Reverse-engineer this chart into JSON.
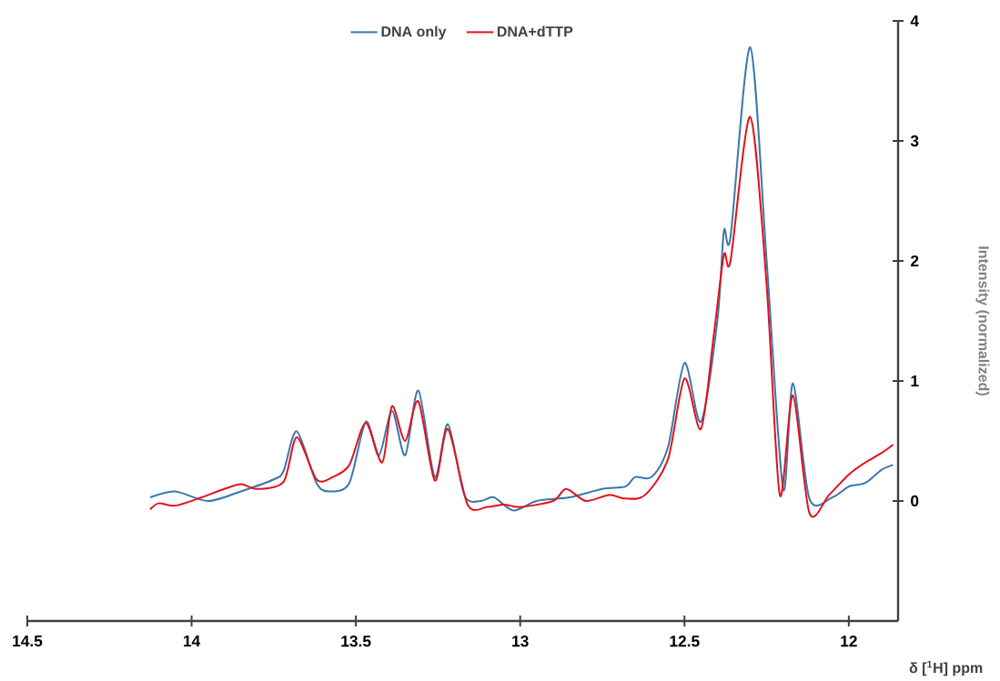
{
  "chart_data": {
    "type": "line",
    "xlabel": "δ [$^{1}$H] ppm",
    "ylabel": "Intensity (normalized)",
    "xlim": [
      14.5,
      11.85
    ],
    "xticks": [
      14.5,
      14,
      13.5,
      13,
      12.5,
      12
    ],
    "ylim": [
      -1,
      4
    ],
    "yticks": [
      0,
      1,
      2,
      3,
      4
    ],
    "legend": "top",
    "series": [
      {
        "name": "DNA only",
        "color": "#3a77ab",
        "x": [
          14.126,
          14.05,
          13.95,
          13.85,
          13.75,
          13.72,
          13.68,
          13.62,
          13.58,
          13.52,
          13.47,
          13.43,
          13.39,
          13.35,
          13.31,
          13.26,
          13.22,
          13.17,
          13.12,
          13.08,
          13.02,
          12.95,
          12.85,
          12.75,
          12.68,
          12.65,
          12.6,
          12.55,
          12.5,
          12.45,
          12.4,
          12.38,
          12.36,
          12.3,
          12.25,
          12.2,
          12.17,
          12.12,
          12.05,
          12.0,
          11.95,
          11.9,
          11.865
        ],
        "values": [
          0.03,
          0.08,
          0.0,
          0.08,
          0.18,
          0.25,
          0.58,
          0.15,
          0.08,
          0.15,
          0.66,
          0.38,
          0.75,
          0.38,
          0.92,
          0.2,
          0.64,
          0.05,
          0.0,
          0.03,
          -0.08,
          0.0,
          0.03,
          0.1,
          0.12,
          0.2,
          0.2,
          0.45,
          1.15,
          0.66,
          1.5,
          2.25,
          2.2,
          3.78,
          2.0,
          0.1,
          0.98,
          0.02,
          0.03,
          0.12,
          0.15,
          0.26,
          0.3
        ]
      },
      {
        "name": "DNA+dTTP",
        "color": "#e3101b",
        "x": [
          14.126,
          14.1,
          14.05,
          13.98,
          13.9,
          13.85,
          13.8,
          13.72,
          13.68,
          13.62,
          13.57,
          13.52,
          13.47,
          13.42,
          13.39,
          13.35,
          13.31,
          13.26,
          13.22,
          13.16,
          13.1,
          13.05,
          13.0,
          12.9,
          12.86,
          12.8,
          12.73,
          12.68,
          12.62,
          12.55,
          12.5,
          12.45,
          12.41,
          12.38,
          12.36,
          12.3,
          12.25,
          12.21,
          12.17,
          12.12,
          12.06,
          12.0,
          11.95,
          11.9,
          11.865
        ],
        "values": [
          -0.07,
          -0.02,
          -0.04,
          0.02,
          0.1,
          0.14,
          0.1,
          0.16,
          0.53,
          0.18,
          0.2,
          0.3,
          0.65,
          0.32,
          0.79,
          0.5,
          0.83,
          0.17,
          0.6,
          -0.03,
          -0.05,
          -0.03,
          -0.05,
          0.0,
          0.1,
          0.0,
          0.05,
          0.02,
          0.05,
          0.35,
          1.02,
          0.6,
          1.4,
          2.05,
          2.0,
          3.2,
          1.8,
          0.05,
          0.88,
          -0.1,
          0.05,
          0.22,
          0.32,
          0.4,
          0.47
        ]
      }
    ]
  }
}
